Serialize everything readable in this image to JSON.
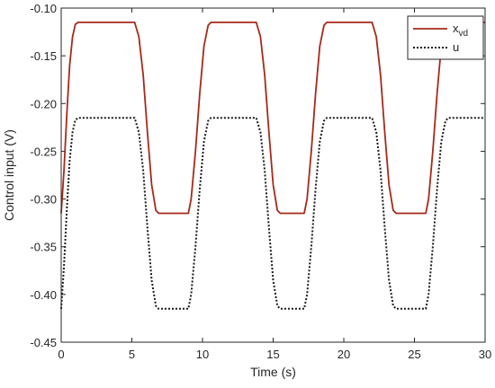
{
  "chart_data": {
    "type": "line",
    "title": "",
    "xlabel": "Time (s)",
    "ylabel": "Control input (V)",
    "xlim": [
      0,
      30
    ],
    "ylim": [
      -0.45,
      -0.1
    ],
    "xticks": [
      0,
      5,
      10,
      15,
      20,
      25,
      30
    ],
    "yticks": [
      -0.45,
      -0.4,
      -0.35,
      -0.3,
      -0.25,
      -0.2,
      -0.15,
      -0.1
    ],
    "xtick_labels": [
      "0",
      "5",
      "10",
      "15",
      "20",
      "25",
      "30"
    ],
    "ytick_labels": [
      "-0.45",
      "-0.40",
      "-0.35",
      "-0.30",
      "-0.25",
      "-0.20",
      "-0.15",
      "-0.10"
    ],
    "grid": false,
    "legend_position": "top-right",
    "series": [
      {
        "name_main": "x",
        "name_sub": "vd",
        "style": "solid",
        "color": "#a52a1a",
        "points": [
          [
            0.0,
            -0.315
          ],
          [
            0.2,
            -0.27
          ],
          [
            0.4,
            -0.21
          ],
          [
            0.6,
            -0.16
          ],
          [
            0.8,
            -0.13
          ],
          [
            1.0,
            -0.117
          ],
          [
            1.2,
            -0.115
          ],
          [
            5.2,
            -0.115
          ],
          [
            5.5,
            -0.13
          ],
          [
            5.8,
            -0.17
          ],
          [
            6.1,
            -0.23
          ],
          [
            6.4,
            -0.285
          ],
          [
            6.7,
            -0.312
          ],
          [
            6.9,
            -0.315
          ],
          [
            9.0,
            -0.315
          ],
          [
            9.2,
            -0.3
          ],
          [
            9.5,
            -0.25
          ],
          [
            9.8,
            -0.19
          ],
          [
            10.1,
            -0.14
          ],
          [
            10.4,
            -0.118
          ],
          [
            10.6,
            -0.115
          ],
          [
            13.8,
            -0.115
          ],
          [
            14.1,
            -0.13
          ],
          [
            14.4,
            -0.17
          ],
          [
            14.7,
            -0.23
          ],
          [
            15.0,
            -0.285
          ],
          [
            15.3,
            -0.312
          ],
          [
            15.5,
            -0.315
          ],
          [
            17.2,
            -0.315
          ],
          [
            17.4,
            -0.3
          ],
          [
            17.7,
            -0.25
          ],
          [
            18.0,
            -0.19
          ],
          [
            18.3,
            -0.14
          ],
          [
            18.6,
            -0.118
          ],
          [
            18.8,
            -0.115
          ],
          [
            22.0,
            -0.115
          ],
          [
            22.3,
            -0.13
          ],
          [
            22.6,
            -0.17
          ],
          [
            22.9,
            -0.23
          ],
          [
            23.2,
            -0.285
          ],
          [
            23.5,
            -0.312
          ],
          [
            23.7,
            -0.315
          ],
          [
            25.8,
            -0.315
          ],
          [
            26.0,
            -0.3
          ],
          [
            26.3,
            -0.25
          ],
          [
            26.6,
            -0.19
          ],
          [
            26.9,
            -0.14
          ],
          [
            27.2,
            -0.118
          ],
          [
            27.4,
            -0.115
          ],
          [
            30.0,
            -0.115
          ]
        ]
      },
      {
        "name_main": "u",
        "name_sub": "",
        "style": "dotted",
        "color": "#1a1a1a",
        "points": [
          [
            0.0,
            -0.415
          ],
          [
            0.2,
            -0.37
          ],
          [
            0.4,
            -0.31
          ],
          [
            0.6,
            -0.26
          ],
          [
            0.8,
            -0.23
          ],
          [
            1.0,
            -0.217
          ],
          [
            1.2,
            -0.215
          ],
          [
            5.2,
            -0.215
          ],
          [
            5.5,
            -0.23
          ],
          [
            5.8,
            -0.27
          ],
          [
            6.1,
            -0.33
          ],
          [
            6.4,
            -0.385
          ],
          [
            6.7,
            -0.412
          ],
          [
            6.9,
            -0.415
          ],
          [
            9.0,
            -0.415
          ],
          [
            9.2,
            -0.4
          ],
          [
            9.5,
            -0.35
          ],
          [
            9.8,
            -0.29
          ],
          [
            10.1,
            -0.24
          ],
          [
            10.4,
            -0.218
          ],
          [
            10.6,
            -0.215
          ],
          [
            13.8,
            -0.215
          ],
          [
            14.1,
            -0.23
          ],
          [
            14.4,
            -0.27
          ],
          [
            14.7,
            -0.33
          ],
          [
            15.0,
            -0.385
          ],
          [
            15.3,
            -0.412
          ],
          [
            15.5,
            -0.415
          ],
          [
            17.2,
            -0.415
          ],
          [
            17.4,
            -0.4
          ],
          [
            17.7,
            -0.35
          ],
          [
            18.0,
            -0.29
          ],
          [
            18.3,
            -0.24
          ],
          [
            18.6,
            -0.218
          ],
          [
            18.8,
            -0.215
          ],
          [
            22.0,
            -0.215
          ],
          [
            22.3,
            -0.23
          ],
          [
            22.6,
            -0.27
          ],
          [
            22.9,
            -0.33
          ],
          [
            23.2,
            -0.385
          ],
          [
            23.5,
            -0.412
          ],
          [
            23.7,
            -0.415
          ],
          [
            25.8,
            -0.415
          ],
          [
            26.0,
            -0.4
          ],
          [
            26.3,
            -0.35
          ],
          [
            26.6,
            -0.29
          ],
          [
            26.9,
            -0.24
          ],
          [
            27.2,
            -0.218
          ],
          [
            27.4,
            -0.215
          ],
          [
            30.0,
            -0.215
          ]
        ]
      }
    ]
  }
}
